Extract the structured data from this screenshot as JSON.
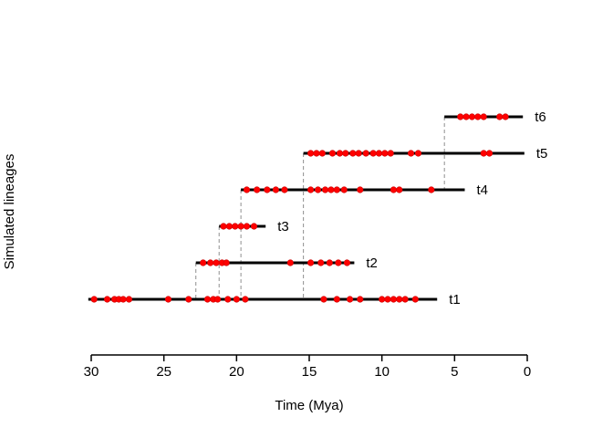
{
  "chart_data": {
    "type": "scatter",
    "variant": "simulated-lineages-occurrence-plot",
    "title": "",
    "xlabel": "Time (Mya)",
    "ylabel": "Simulated lineages",
    "xlim": [
      30,
      0
    ],
    "x_ticks": [
      30,
      25,
      20,
      15,
      10,
      5,
      0
    ],
    "x_axis_reversed": true,
    "grid": false,
    "legend": false,
    "colors": {
      "lineage_line": "#000000",
      "occurrence_dot": "#ff0000",
      "occurrence_dot_edge": "#cc0000",
      "branch_dashed_line": "#8f8f8f",
      "axis": "#000000"
    },
    "lineages": [
      {
        "name": "t1",
        "start_mya": 30.2,
        "end_mya": 6.2,
        "branch_from": null,
        "occurrences_mya": [
          29.8,
          28.9,
          28.4,
          28.1,
          27.8,
          27.4,
          24.7,
          23.3,
          22.0,
          21.6,
          21.3,
          20.6,
          20.0,
          19.4,
          14.0,
          13.1,
          12.2,
          11.5,
          10.0,
          9.6,
          9.2,
          8.8,
          8.4,
          7.7
        ]
      },
      {
        "name": "t2",
        "start_mya": 22.8,
        "end_mya": 11.9,
        "branch_from": "t1",
        "occurrences_mya": [
          22.3,
          21.8,
          21.4,
          21.0,
          20.7,
          16.3,
          14.9,
          14.2,
          13.6,
          13.0,
          12.4
        ]
      },
      {
        "name": "t3",
        "start_mya": 21.2,
        "end_mya": 18.0,
        "branch_from": "t1",
        "occurrences_mya": [
          20.9,
          20.5,
          20.1,
          19.7,
          19.3,
          18.8
        ]
      },
      {
        "name": "t4",
        "start_mya": 19.7,
        "end_mya": 4.3,
        "branch_from": "t1",
        "occurrences_mya": [
          19.3,
          18.6,
          17.9,
          17.3,
          16.7,
          14.9,
          14.4,
          13.9,
          13.5,
          13.1,
          12.6,
          11.5,
          9.2,
          8.8,
          6.6
        ]
      },
      {
        "name": "t5",
        "start_mya": 15.4,
        "end_mya": 0.2,
        "branch_from": "t1",
        "occurrences_mya": [
          14.9,
          14.5,
          14.1,
          13.4,
          12.9,
          12.5,
          12.0,
          11.6,
          11.1,
          10.6,
          10.2,
          9.8,
          9.4,
          8.0,
          7.5,
          3.0,
          2.6
        ]
      },
      {
        "name": "t6",
        "start_mya": 5.7,
        "end_mya": 0.3,
        "branch_from": "t4",
        "occurrences_mya": [
          4.6,
          4.2,
          3.8,
          3.4,
          3.0,
          1.9,
          1.5
        ]
      }
    ]
  }
}
